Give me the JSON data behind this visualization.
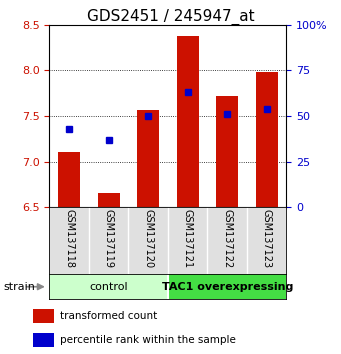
{
  "title": "GDS2451 / 245947_at",
  "categories": [
    "GSM137118",
    "GSM137119",
    "GSM137120",
    "GSM137121",
    "GSM137122",
    "GSM137123"
  ],
  "red_values": [
    7.1,
    6.65,
    7.57,
    8.38,
    7.72,
    7.98
  ],
  "blue_values": [
    43,
    37,
    50,
    63,
    51,
    54
  ],
  "ylim_left": [
    6.5,
    8.5
  ],
  "ylim_right": [
    0,
    100
  ],
  "yticks_left": [
    6.5,
    7.0,
    7.5,
    8.0,
    8.5
  ],
  "yticks_right": [
    0,
    25,
    50,
    75,
    100
  ],
  "ytick_labels_right": [
    "0",
    "25",
    "50",
    "75",
    "100%"
  ],
  "bar_color": "#CC1100",
  "dot_color": "#0000CC",
  "bar_bottom": 6.5,
  "ctrl_color": "#CCFFCC",
  "tac1_color": "#44DD44",
  "grid_yticks": [
    7.0,
    7.5,
    8.0
  ],
  "legend_labels": [
    "transformed count",
    "percentile rank within the sample"
  ],
  "strain_label": "strain",
  "title_fontsize": 11,
  "tick_fontsize": 8,
  "cat_fontsize": 7,
  "group_fontsize": 8,
  "legend_fontsize": 7.5
}
